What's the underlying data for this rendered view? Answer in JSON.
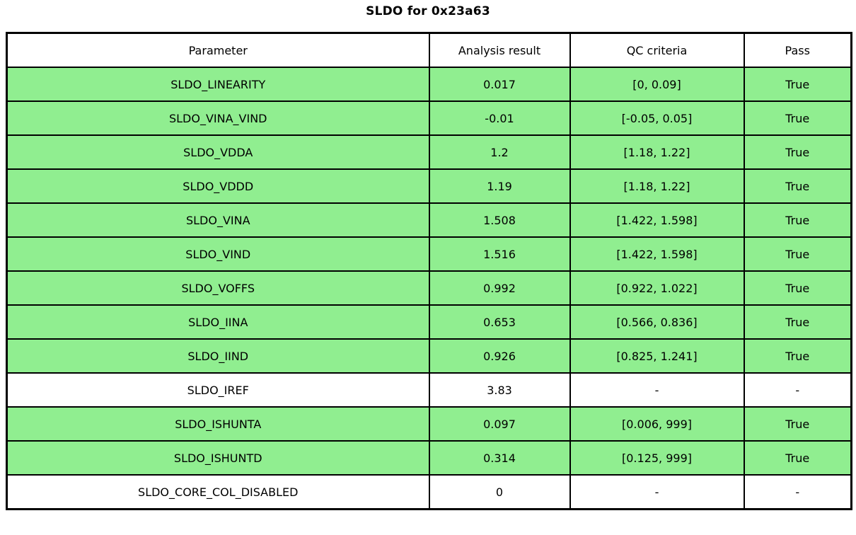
{
  "title": "SLDO for 0x23a63",
  "colors": {
    "pass_row": "#90EE90",
    "neutral_row": "#FFFFFF",
    "header_bg": "#FFFFFF",
    "border": "#000000",
    "text": "#000000"
  },
  "table": {
    "headers": [
      "Parameter",
      "Analysis result",
      "QC criteria",
      "Pass"
    ],
    "rows": [
      {
        "parameter": "SLDO_LINEARITY",
        "result": "0.017",
        "qc": "[0, 0.09]",
        "pass": "True",
        "highlight": true
      },
      {
        "parameter": "SLDO_VINA_VIND",
        "result": "-0.01",
        "qc": "[-0.05, 0.05]",
        "pass": "True",
        "highlight": true
      },
      {
        "parameter": "SLDO_VDDA",
        "result": "1.2",
        "qc": "[1.18, 1.22]",
        "pass": "True",
        "highlight": true
      },
      {
        "parameter": "SLDO_VDDD",
        "result": "1.19",
        "qc": "[1.18, 1.22]",
        "pass": "True",
        "highlight": true
      },
      {
        "parameter": "SLDO_VINA",
        "result": "1.508",
        "qc": "[1.422, 1.598]",
        "pass": "True",
        "highlight": true
      },
      {
        "parameter": "SLDO_VIND",
        "result": "1.516",
        "qc": "[1.422, 1.598]",
        "pass": "True",
        "highlight": true
      },
      {
        "parameter": "SLDO_VOFFS",
        "result": "0.992",
        "qc": "[0.922, 1.022]",
        "pass": "True",
        "highlight": true
      },
      {
        "parameter": "SLDO_IINA",
        "result": "0.653",
        "qc": "[0.566, 0.836]",
        "pass": "True",
        "highlight": true
      },
      {
        "parameter": "SLDO_IIND",
        "result": "0.926",
        "qc": "[0.825, 1.241]",
        "pass": "True",
        "highlight": true
      },
      {
        "parameter": "SLDO_IREF",
        "result": "3.83",
        "qc": "-",
        "pass": "-",
        "highlight": false
      },
      {
        "parameter": "SLDO_ISHUNTA",
        "result": "0.097",
        "qc": "[0.006, 999]",
        "pass": "True",
        "highlight": true
      },
      {
        "parameter": "SLDO_ISHUNTD",
        "result": "0.314",
        "qc": "[0.125, 999]",
        "pass": "True",
        "highlight": true
      },
      {
        "parameter": "SLDO_CORE_COL_DISABLED",
        "result": "0",
        "qc": "-",
        "pass": "-",
        "highlight": false
      }
    ]
  },
  "chart_data": {
    "type": "table",
    "title": "SLDO for 0x23a63",
    "columns": [
      "Parameter",
      "Analysis result",
      "QC criteria",
      "Pass"
    ],
    "rows": [
      [
        "SLDO_LINEARITY",
        "0.017",
        "[0, 0.09]",
        "True"
      ],
      [
        "SLDO_VINA_VIND",
        "-0.01",
        "[-0.05, 0.05]",
        "True"
      ],
      [
        "SLDO_VDDA",
        "1.2",
        "[1.18, 1.22]",
        "True"
      ],
      [
        "SLDO_VDDD",
        "1.19",
        "[1.18, 1.22]",
        "True"
      ],
      [
        "SLDO_VINA",
        "1.508",
        "[1.422, 1.598]",
        "True"
      ],
      [
        "SLDO_VIND",
        "1.516",
        "[1.422, 1.598]",
        "True"
      ],
      [
        "SLDO_VOFFS",
        "0.992",
        "[0.922, 1.022]",
        "True"
      ],
      [
        "SLDO_IINA",
        "0.653",
        "[0.566, 0.836]",
        "True"
      ],
      [
        "SLDO_IIND",
        "0.926",
        "[0.825, 1.241]",
        "True"
      ],
      [
        "SLDO_IREF",
        "3.83",
        "-",
        "-"
      ],
      [
        "SLDO_ISHUNTA",
        "0.097",
        "[0.006, 999]",
        "True"
      ],
      [
        "SLDO_ISHUNTD",
        "0.314",
        "[0.125, 999]",
        "True"
      ],
      [
        "SLDO_CORE_COL_DISABLED",
        "0",
        "-",
        "-"
      ]
    ],
    "layout": {
      "green_rows_indicate": "pass = True",
      "white_rows_indicate": "no QC criteria or informational row",
      "grid": true,
      "legend": false
    }
  }
}
